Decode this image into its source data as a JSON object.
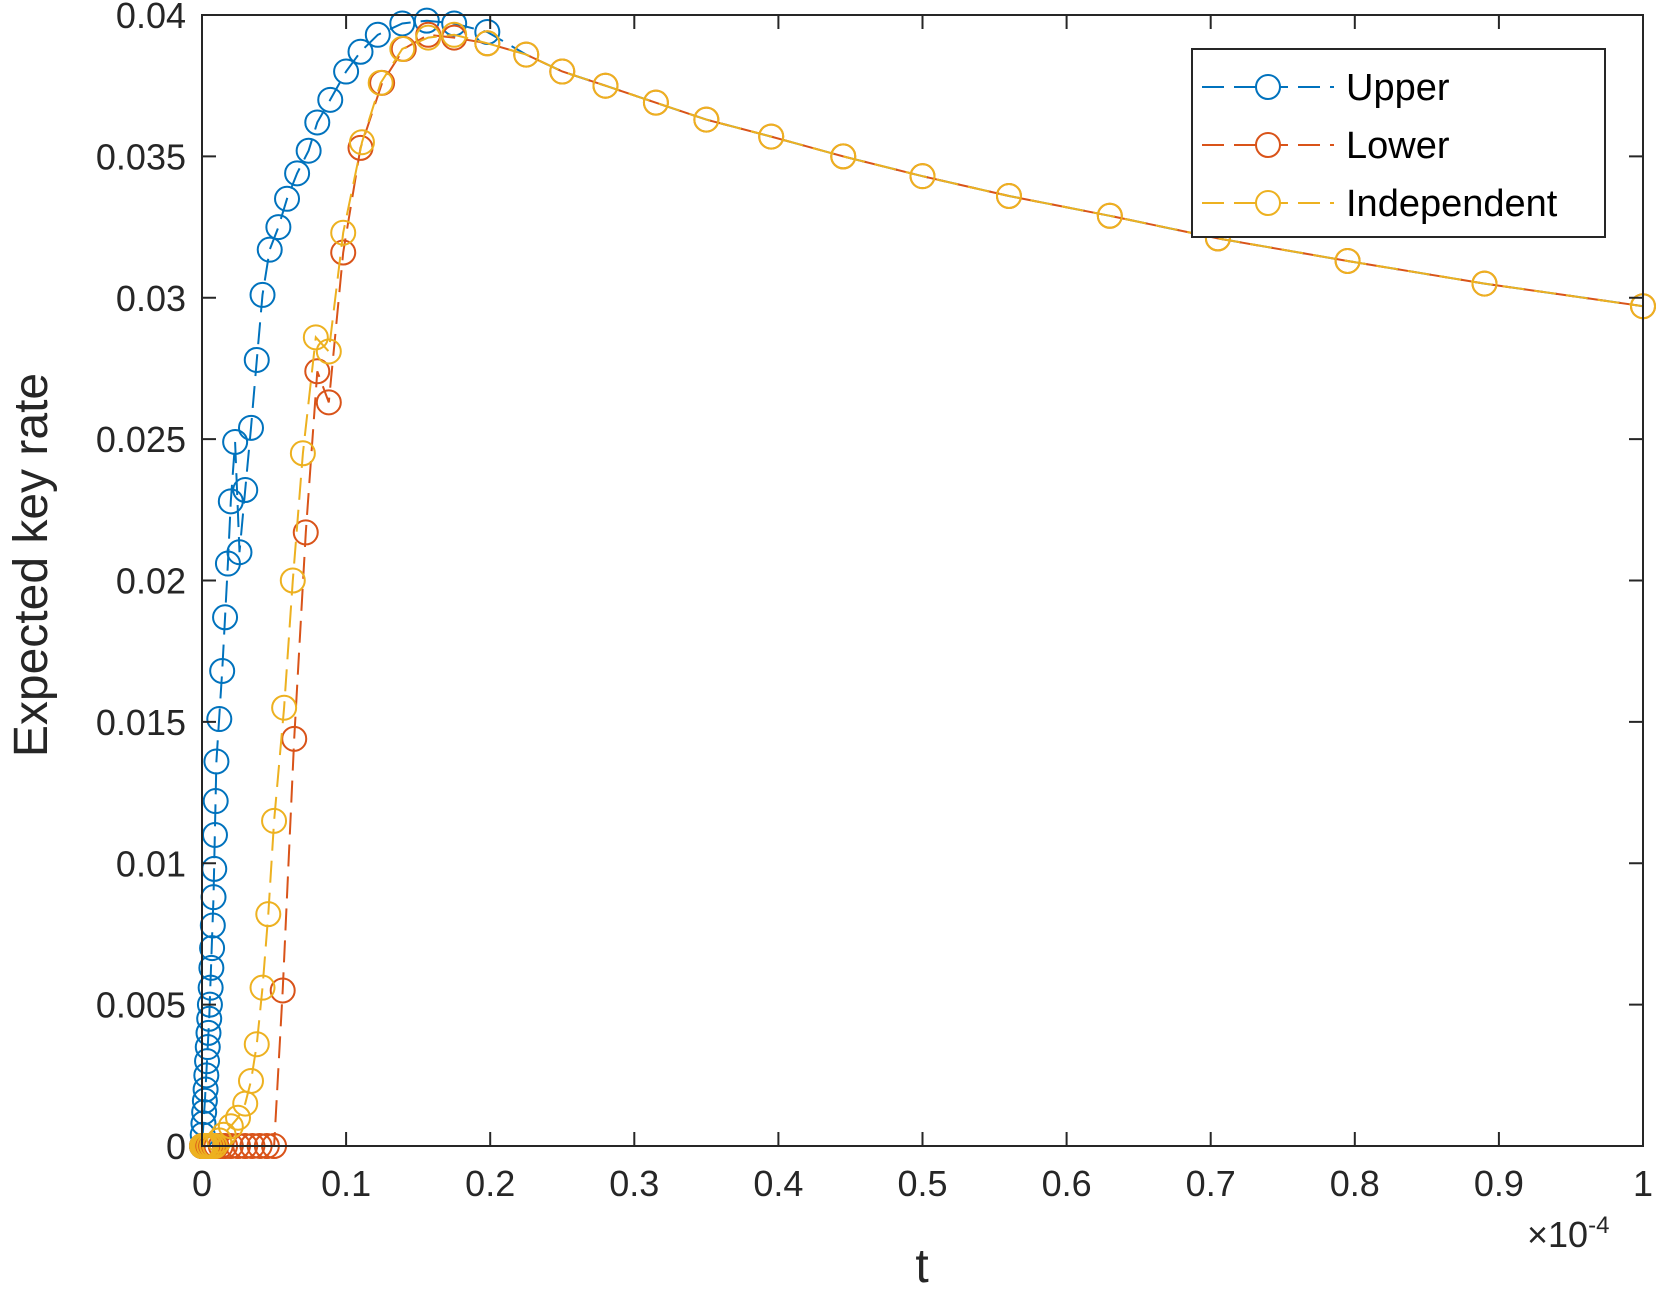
{
  "chart_data": {
    "type": "line",
    "title": "",
    "xlabel": "t",
    "ylabel": "Expected key rate",
    "x_multiplier_label": "×10",
    "x_multiplier_exponent": "-4",
    "xlim": [
      0,
      1
    ],
    "ylim": [
      0,
      0.04
    ],
    "x_ticks": [
      0,
      0.1,
      0.2,
      0.3,
      0.4,
      0.5,
      0.6,
      0.7,
      0.8,
      0.9,
      1
    ],
    "x_tick_labels": [
      "0",
      "0.1",
      "0.2",
      "0.3",
      "0.4",
      "0.5",
      "0.6",
      "0.7",
      "0.8",
      "0.9",
      "1"
    ],
    "y_ticks": [
      0,
      0.005,
      0.01,
      0.015,
      0.02,
      0.025,
      0.03,
      0.035,
      0.04
    ],
    "y_tick_labels": [
      "0",
      "0.005",
      "0.01",
      "0.015",
      "0.02",
      "0.025",
      "0.03",
      "0.035",
      "0.04"
    ],
    "grid": false,
    "legend_position": "top-right",
    "marker": "circle",
    "line_style": "dashed",
    "series": [
      {
        "name": "Upper",
        "color": "#0072BD",
        "x": [
          0,
          0.0005,
          0.001,
          0.0015,
          0.002,
          0.0025,
          0.003,
          0.0035,
          0.004,
          0.0045,
          0.005,
          0.0055,
          0.006,
          0.0065,
          0.007,
          0.0075,
          0.008,
          0.0085,
          0.009,
          0.0095,
          0.01,
          0.012,
          0.014,
          0.016,
          0.018,
          0.02,
          0.023,
          0.026,
          0.03,
          0.034,
          0.038,
          0.042,
          0.047,
          0.053,
          0.059,
          0.066,
          0.074,
          0.08,
          0.089,
          0.1,
          0.11,
          0.122,
          0.139,
          0.156,
          0.175,
          0.198
        ],
        "y": [
          0,
          0.0004,
          0.0008,
          0.0012,
          0.0016,
          0.002,
          0.0025,
          0.003,
          0.0035,
          0.004,
          0.0045,
          0.005,
          0.0056,
          0.0063,
          0.007,
          0.0078,
          0.0088,
          0.0098,
          0.011,
          0.0122,
          0.0136,
          0.0151,
          0.0168,
          0.0187,
          0.0206,
          0.0228,
          0.0249,
          0.021,
          0.0232,
          0.0254,
          0.0278,
          0.0301,
          0.0317,
          0.0325,
          0.0335,
          0.0344,
          0.0352,
          0.0362,
          0.037,
          0.038,
          0.0387,
          0.0393,
          0.0397,
          0.0398,
          0.0397,
          0.0394
        ],
        "line_path_x": [
          0,
          0.002,
          0.005,
          0.008,
          0.01,
          0.014,
          0.018,
          0.02,
          0.023,
          0.026,
          0.03,
          0.034,
          0.038,
          0.042,
          0.047,
          0.053,
          0.059,
          0.066,
          0.074,
          0.08,
          0.089,
          0.1,
          0.11,
          0.122,
          0.139,
          0.156,
          0.175,
          0.198,
          0.225,
          0.25,
          0.28,
          0.315,
          0.35,
          0.395,
          0.445,
          0.5,
          0.56,
          0.63,
          0.705,
          0.795,
          0.89,
          1.0
        ],
        "line_path_y": [
          0,
          0.0016,
          0.0045,
          0.0088,
          0.0136,
          0.0168,
          0.0206,
          0.0228,
          0.0249,
          0.021,
          0.0232,
          0.0254,
          0.0278,
          0.0301,
          0.0317,
          0.0325,
          0.0335,
          0.0344,
          0.0352,
          0.0362,
          0.037,
          0.038,
          0.0387,
          0.0393,
          0.0397,
          0.0398,
          0.0397,
          0.0394,
          0.0386,
          0.038,
          0.0375,
          0.0369,
          0.0363,
          0.0357,
          0.035,
          0.0343,
          0.0336,
          0.0329,
          0.0321,
          0.0313,
          0.0305,
          0.0297
        ]
      },
      {
        "name": "Lower",
        "color": "#D95319",
        "x": [
          0,
          0.002,
          0.004,
          0.006,
          0.008,
          0.01,
          0.013,
          0.016,
          0.02,
          0.025,
          0.03,
          0.035,
          0.04,
          0.045,
          0.05,
          0.056,
          0.064,
          0.072,
          0.08,
          0.088,
          0.098,
          0.11,
          0.125,
          0.14,
          0.157,
          0.175,
          0.198,
          0.225,
          0.25,
          0.28,
          0.315,
          0.35,
          0.395,
          0.445,
          0.5,
          0.56,
          0.63,
          0.705,
          0.795,
          0.89,
          1.0
        ],
        "y": [
          0,
          0,
          0,
          0,
          0,
          0,
          0,
          0,
          0,
          0,
          0,
          0,
          0,
          0,
          0,
          0.0055,
          0.0144,
          0.0217,
          0.0274,
          0.0263,
          0.0316,
          0.0353,
          0.0376,
          0.0388,
          0.0393,
          0.0392,
          0.039,
          0.0386,
          0.038,
          0.0375,
          0.0369,
          0.0363,
          0.0357,
          0.035,
          0.0343,
          0.0336,
          0.0329,
          0.0321,
          0.0313,
          0.0305,
          0.0297
        ]
      },
      {
        "name": "Independent",
        "color": "#EDB120",
        "x": [
          0,
          0.001,
          0.002,
          0.003,
          0.005,
          0.007,
          0.009,
          0.012,
          0.015,
          0.02,
          0.025,
          0.03,
          0.034,
          0.038,
          0.042,
          0.046,
          0.05,
          0.057,
          0.063,
          0.07,
          0.079,
          0.088,
          0.098,
          0.111,
          0.124,
          0.139,
          0.157,
          0.175,
          0.198,
          0.225,
          0.25,
          0.28,
          0.315,
          0.35,
          0.395,
          0.445,
          0.5,
          0.56,
          0.63,
          0.705,
          0.795,
          0.89,
          1.0
        ],
        "y": [
          0,
          0,
          0,
          0,
          0,
          0,
          0,
          0.0002,
          0.0004,
          0.0007,
          0.001,
          0.0015,
          0.0023,
          0.0036,
          0.0056,
          0.0082,
          0.0115,
          0.0155,
          0.02,
          0.0245,
          0.0286,
          0.0281,
          0.0323,
          0.0355,
          0.0376,
          0.0388,
          0.0392,
          0.0393,
          0.039,
          0.0386,
          0.038,
          0.0375,
          0.0369,
          0.0363,
          0.0357,
          0.035,
          0.0343,
          0.0336,
          0.0329,
          0.0321,
          0.0313,
          0.0305,
          0.0297
        ]
      }
    ]
  }
}
